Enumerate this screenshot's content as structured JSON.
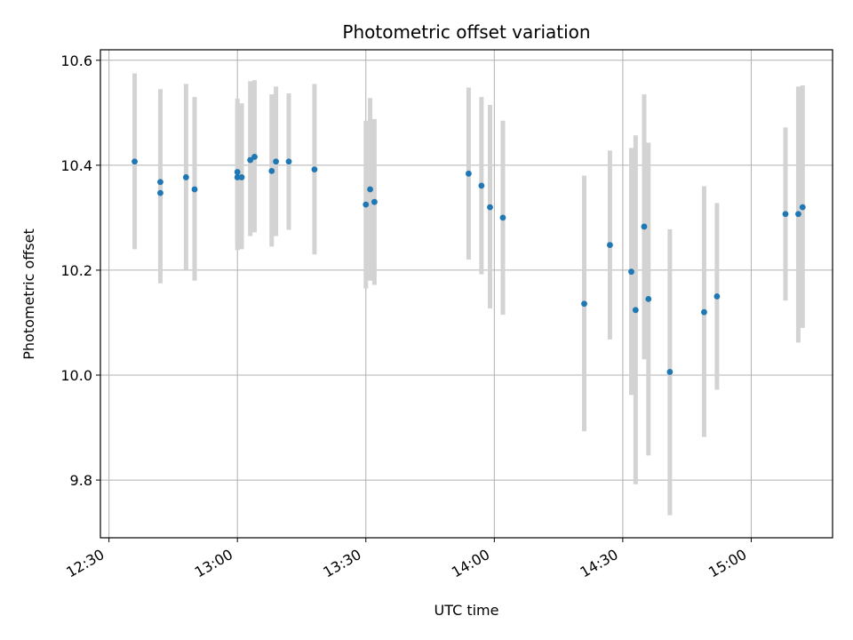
{
  "chart_data": {
    "type": "scatter",
    "title": "Photometric offset variation",
    "xlabel": "UTC time",
    "ylabel": "Photometric offset",
    "x_axis_kind": "time",
    "xlim": [
      "12:28",
      "15:19"
    ],
    "ylim": [
      9.69,
      10.62
    ],
    "grid": true,
    "x_ticks": [
      "12:30",
      "13:00",
      "13:30",
      "14:00",
      "14:30",
      "15:00"
    ],
    "y_ticks": [
      9.8,
      10.0,
      10.2,
      10.4,
      10.6
    ],
    "y_tick_labels": [
      "9.8",
      "10.0",
      "10.2",
      "10.4",
      "10.6"
    ],
    "colors": {
      "point": "#1f77b4",
      "errorbar": "#d3d3d3",
      "grid": "#b0b0b0"
    },
    "series": [
      {
        "points": [
          {
            "x": "12:36",
            "y": 10.407,
            "low": 10.24,
            "high": 10.575
          },
          {
            "x": "12:42",
            "y": 10.368,
            "low": 10.19,
            "high": 10.545
          },
          {
            "x": "12:42",
            "y": 10.347,
            "low": 10.175,
            "high": 10.52
          },
          {
            "x": "12:48",
            "y": 10.377,
            "low": 10.2,
            "high": 10.555
          },
          {
            "x": "12:50",
            "y": 10.354,
            "low": 10.18,
            "high": 10.53
          },
          {
            "x": "13:00",
            "y": 10.387,
            "low": 10.25,
            "high": 10.527
          },
          {
            "x": "13:00",
            "y": 10.377,
            "low": 10.238,
            "high": 10.515
          },
          {
            "x": "13:01",
            "y": 10.377,
            "low": 10.24,
            "high": 10.518
          },
          {
            "x": "13:03",
            "y": 10.41,
            "low": 10.265,
            "high": 10.56
          },
          {
            "x": "13:04",
            "y": 10.416,
            "low": 10.272,
            "high": 10.562
          },
          {
            "x": "13:08",
            "y": 10.389,
            "low": 10.245,
            "high": 10.535
          },
          {
            "x": "13:09",
            "y": 10.407,
            "low": 10.265,
            "high": 10.55
          },
          {
            "x": "13:12",
            "y": 10.407,
            "low": 10.277,
            "high": 10.537
          },
          {
            "x": "13:18",
            "y": 10.392,
            "low": 10.23,
            "high": 10.555
          },
          {
            "x": "13:30",
            "y": 10.325,
            "low": 10.165,
            "high": 10.485
          },
          {
            "x": "13:31",
            "y": 10.354,
            "low": 10.18,
            "high": 10.528
          },
          {
            "x": "13:32",
            "y": 10.33,
            "low": 10.172,
            "high": 10.488
          },
          {
            "x": "13:54",
            "y": 10.384,
            "low": 10.22,
            "high": 10.548
          },
          {
            "x": "13:57",
            "y": 10.361,
            "low": 10.192,
            "high": 10.53
          },
          {
            "x": "13:59",
            "y": 10.32,
            "low": 10.127,
            "high": 10.515
          },
          {
            "x": "14:02",
            "y": 10.3,
            "low": 10.115,
            "high": 10.485
          },
          {
            "x": "14:21",
            "y": 10.136,
            "low": 9.893,
            "high": 10.38
          },
          {
            "x": "14:27",
            "y": 10.248,
            "low": 10.068,
            "high": 10.428
          },
          {
            "x": "14:32",
            "y": 10.197,
            "low": 9.962,
            "high": 10.433
          },
          {
            "x": "14:33",
            "y": 10.124,
            "low": 9.792,
            "high": 10.457
          },
          {
            "x": "14:35",
            "y": 10.283,
            "low": 10.03,
            "high": 10.535
          },
          {
            "x": "14:36",
            "y": 10.145,
            "low": 9.847,
            "high": 10.443
          },
          {
            "x": "14:41",
            "y": 10.006,
            "low": 9.733,
            "high": 10.278
          },
          {
            "x": "14:49",
            "y": 10.12,
            "low": 9.882,
            "high": 10.36
          },
          {
            "x": "14:52",
            "y": 10.15,
            "low": 9.972,
            "high": 10.328
          },
          {
            "x": "15:08",
            "y": 10.307,
            "low": 10.142,
            "high": 10.472
          },
          {
            "x": "15:11",
            "y": 10.307,
            "low": 10.062,
            "high": 10.55
          },
          {
            "x": "15:12",
            "y": 10.32,
            "low": 10.09,
            "high": 10.552
          }
        ]
      }
    ]
  }
}
